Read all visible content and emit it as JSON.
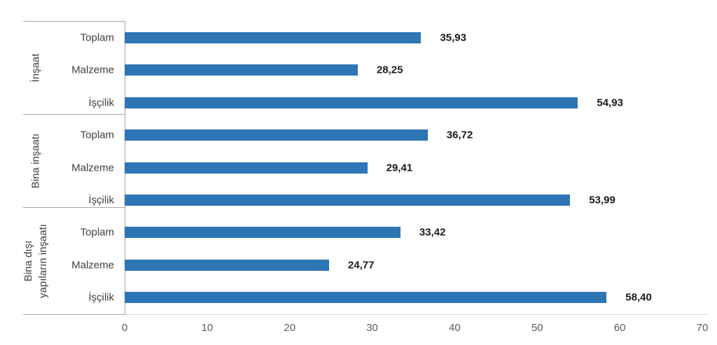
{
  "chart_data": {
    "type": "bar",
    "orientation": "horizontal",
    "title": "",
    "xlabel": "",
    "ylabel": "",
    "xlim": [
      0,
      70
    ],
    "x_ticks": [
      "0",
      "10",
      "20",
      "30",
      "40",
      "50",
      "60",
      "70"
    ],
    "grid": false,
    "legend": false,
    "decimal_separator": ",",
    "groups": [
      {
        "label": "İnşaat",
        "label_lines": [
          "İnşaat"
        ],
        "bars": [
          {
            "category": "Toplam",
            "value": 35.93,
            "value_label": "35,93"
          },
          {
            "category": "Malzeme",
            "value": 28.25,
            "value_label": "28,25"
          },
          {
            "category": "İşçilik",
            "value": 54.93,
            "value_label": "54,93"
          }
        ]
      },
      {
        "label": "Bina inşaatı",
        "label_lines": [
          "Bina inşaatı"
        ],
        "bars": [
          {
            "category": "Toplam",
            "value": 36.72,
            "value_label": "36,72"
          },
          {
            "category": "Malzeme",
            "value": 29.41,
            "value_label": "29,41"
          },
          {
            "category": "İşçilik",
            "value": 53.99,
            "value_label": "53,99"
          }
        ]
      },
      {
        "label": "Bina dışı yapıların inşaatı",
        "label_lines": [
          "Bina dışı",
          "yapıların inşaatı"
        ],
        "bars": [
          {
            "category": "Toplam",
            "value": 33.42,
            "value_label": "33,42"
          },
          {
            "category": "Malzeme",
            "value": 24.77,
            "value_label": "24,77"
          },
          {
            "category": "İşçilik",
            "value": 58.4,
            "value_label": "58,40"
          }
        ]
      }
    ],
    "colors": {
      "bar": "#2e75b6",
      "value_label": "#1a1a1a",
      "category_label": "#3f3f3f",
      "group_label": "#3f3f3f",
      "tick_label": "#5a5a5a",
      "separator_line": "#a6a6a6",
      "axis_line": "#d9d9d9",
      "background": "#ffffff"
    }
  }
}
